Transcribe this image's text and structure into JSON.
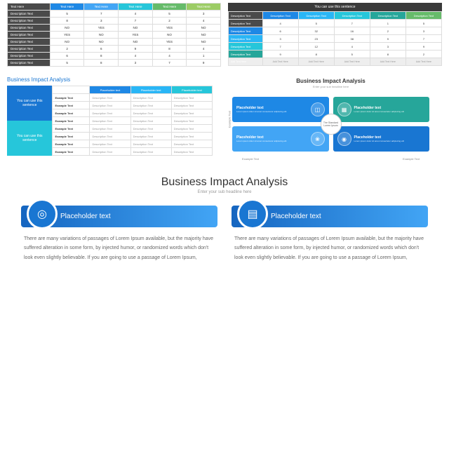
{
  "s1": {
    "headers": [
      "Text Here",
      "Text Here",
      "Text Here",
      "Text Here",
      "Text Here",
      "Text Here"
    ],
    "header_colors": [
      "#4a4a4a",
      "#1e88e5",
      "#42a5f5",
      "#26c6da",
      "#66bb6a",
      "#9ccc65"
    ],
    "rows": [
      [
        "Description Text",
        "5",
        "7",
        "4",
        "5",
        "3"
      ],
      [
        "Description Text",
        "8",
        "3",
        "7",
        "2",
        "4"
      ],
      [
        "Description Text",
        "NO",
        "YES",
        "NO",
        "YES",
        "NO"
      ],
      [
        "Description Text",
        "YES",
        "NO",
        "YES",
        "NO",
        "NO"
      ],
      [
        "Description Text",
        "NO",
        "NO",
        "NO",
        "YES",
        "NO"
      ],
      [
        "Description Text",
        "2",
        "6",
        "9",
        "8",
        "4"
      ],
      [
        "Description Text",
        "6",
        "8",
        "4",
        "4",
        "1"
      ],
      [
        "Description Text",
        "5",
        "8",
        "3",
        "7",
        "9"
      ]
    ]
  },
  "s2": {
    "banner": "You can use this sentence",
    "headers": [
      "Description Text",
      "Description Text",
      "Description Text",
      "Description Text",
      "Description Text",
      "Description Text"
    ],
    "header_colors": [
      "#4a4a4a",
      "#1e88e5",
      "#29b6f6",
      "#26c6da",
      "#26a69a",
      "#66bb6a"
    ],
    "row_label_colors": [
      "#4a4a4a",
      "#1e88e5",
      "#29b6f6",
      "#26c6da",
      "#26a69a"
    ],
    "rows": [
      [
        "Description Text",
        "4",
        "5",
        "7",
        "1",
        "5"
      ],
      [
        "Description Text",
        "6",
        "32",
        "16",
        "2",
        "3"
      ],
      [
        "Description Text",
        "3",
        "23",
        "38",
        "9",
        "7"
      ],
      [
        "Description Text",
        "7",
        "12",
        "4",
        "3",
        "9"
      ],
      [
        "Description Text",
        "9",
        "8",
        "5",
        "8",
        "2"
      ]
    ],
    "footer": [
      "Add Text Here",
      "Add Text Here",
      "Add Text Here",
      "Add Text Here",
      "Add Text Here",
      "Add Text Here"
    ]
  },
  "s3": {
    "title": "Business Impact Analysis",
    "left_boxes": [
      "You can use this sentence",
      "You can use this sentence"
    ],
    "left_colors": [
      "#1976d2",
      "#26c6da"
    ],
    "headers": [
      "",
      "Placeholder text",
      "Placeholder text",
      "Placeholder text"
    ],
    "header_colors": [
      "#ffffff",
      "#1e88e5",
      "#29b6f6",
      "#26c6da"
    ],
    "rows": [
      [
        "Example Text",
        "Description Text",
        "Description Text",
        "Description Text"
      ],
      [
        "Example Text",
        "Description Text",
        "Description Text",
        "Description Text"
      ],
      [
        "Example Text",
        "Description Text",
        "Description Text",
        "Description Text"
      ],
      [
        "Example Text",
        "Description Text",
        "Description Text",
        "Description Text"
      ],
      [
        "Example Text",
        "Description Text",
        "Description Text",
        "Description Text"
      ],
      [
        "Example Text",
        "Description Text",
        "Description Text",
        "Description Text"
      ],
      [
        "Example Text",
        "Description Text",
        "Description Text",
        "Description Text"
      ],
      [
        "Example Text",
        "Description Text",
        "Description Text",
        "Description Text"
      ]
    ]
  },
  "s4": {
    "title": "Business Impact Analysis",
    "subtitle": "Enter your sub headline here",
    "center": "The Standard Lorem Ipsum",
    "axis_y": "Example Text",
    "axis_x_left": "Example Text",
    "axis_x_right": "Example Text",
    "cards": [
      {
        "h": "Placeholder text",
        "p": "Lorem ipsum dolor sit amet consectetur adipiscing elit",
        "color": "#1976d2",
        "icon": "◉"
      },
      {
        "h": "Placeholder text",
        "p": "Lorem ipsum dolor sit amet consectetur adipiscing elit",
        "color": "#42a5f5",
        "icon": "❀"
      },
      {
        "h": "Placeholder text",
        "p": "Lorem ipsum dolor sit amet consectetur adipiscing elit",
        "color": "#26a69a",
        "icon": "▦"
      },
      {
        "h": "Placeholder text",
        "p": "Lorem ipsum dolor sit amet consectetur adipiscing elit",
        "color": "#1e88e5",
        "icon": "◫"
      }
    ]
  },
  "s5": {
    "title": "Business Impact Analysis",
    "subtitle": "Enter your sub headline here",
    "cards": [
      {
        "h": "Placeholder text",
        "icon": "◎",
        "body": "There are many variations of passages of Lorem Ipsum available, but the majority have suffered alteration in some form, by injected humor, or randomized words which don't look even slightly believable. If you are going to use a passage of Lorem Ipsum,"
      },
      {
        "h": "Placeholder text",
        "icon": "▤",
        "body": "There are many variations of passages of Lorem Ipsum available, but the majority have suffered alteration in some form, by injected humor, or randomized words which don't look even slightly believable. If you are going to use a passage of Lorem Ipsum,"
      }
    ]
  }
}
